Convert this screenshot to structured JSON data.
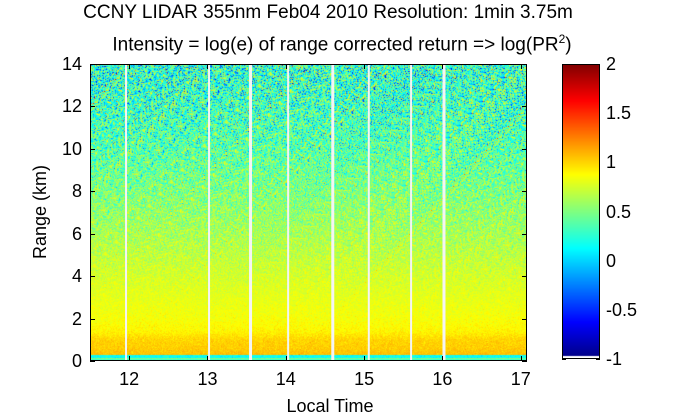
{
  "chart_data": {
    "type": "heatmap",
    "title": "CCNY LIDAR 355nm Feb04 2010 Resolution: 1min 3.75m",
    "subtitle_main": "Intensity = log(e) of range corrected return => log(PR",
    "subtitle_sup": "2",
    "subtitle_end": ")",
    "xlabel": "Local Time",
    "ylabel": "Range (km)",
    "xlim": [
      11.5,
      17.08
    ],
    "ylim": [
      0,
      14
    ],
    "xticks": [
      "12",
      "13",
      "14",
      "15",
      "16",
      "17"
    ],
    "xtick_values": [
      12,
      13,
      14,
      15,
      16,
      17
    ],
    "yticks": [
      "0",
      "2",
      "4",
      "6",
      "8",
      "10",
      "12",
      "14"
    ],
    "ytick_values": [
      0,
      2,
      4,
      6,
      8,
      10,
      12,
      14
    ],
    "colorbar": {
      "colormap": "jet",
      "clim": [
        -1,
        2
      ],
      "ticks": [
        "2",
        "1.5",
        "1",
        "0.5",
        "0",
        "-0.5",
        "-1"
      ],
      "tick_values": [
        2,
        1.5,
        1,
        0.5,
        0,
        -0.5,
        -1
      ]
    },
    "data_gaps_local_time": [
      11.96,
      13.02,
      13.55,
      14.03,
      14.6,
      15.06,
      15.6,
      16.02
    ],
    "intensity_profile": {
      "range_km": [
        0,
        0.3,
        0.6,
        1.0,
        1.4,
        2.0,
        3.0,
        4.0,
        6.0,
        8.0,
        10.0,
        12.0,
        14.0
      ],
      "log_pr2": [
        0.1,
        1.05,
        1.02,
        1.0,
        0.9,
        0.85,
        0.8,
        0.75,
        0.62,
        0.5,
        0.38,
        0.3,
        0.25
      ]
    }
  }
}
